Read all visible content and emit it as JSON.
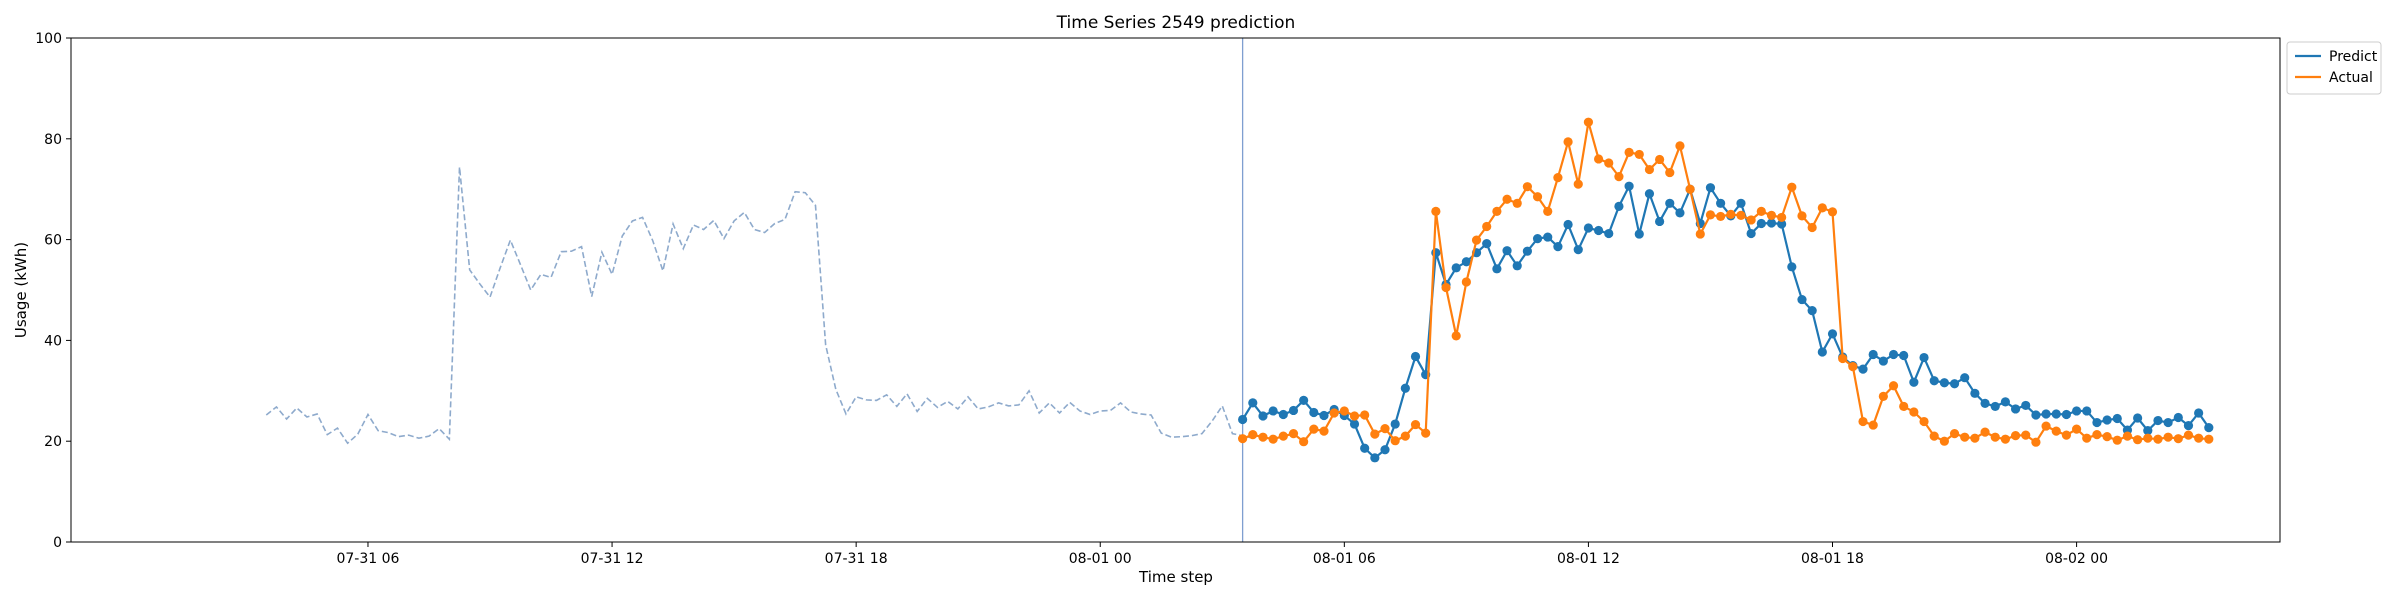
{
  "chart_data": {
    "type": "line",
    "title": "Time Series 2549 prediction",
    "xlabel": "Time step",
    "ylabel": "Usage (kWh)",
    "ylim": [
      0,
      100
    ],
    "yticks": [
      0,
      20,
      40,
      60,
      80,
      100
    ],
    "xlim": [
      "2024-07-30 22:42",
      "2024-08-02 05:00"
    ],
    "xticks": [
      {
        "t": "2024-07-31 06:00",
        "label": "07-31 06"
      },
      {
        "t": "2024-07-31 12:00",
        "label": "07-31 12"
      },
      {
        "t": "2024-07-31 18:00",
        "label": "07-31 18"
      },
      {
        "t": "2024-08-01 00:00",
        "label": "08-01 00"
      },
      {
        "t": "2024-08-01 06:00",
        "label": "08-01 06"
      },
      {
        "t": "2024-08-01 12:00",
        "label": "08-01 12"
      },
      {
        "t": "2024-08-01 18:00",
        "label": "08-01 18"
      },
      {
        "t": "2024-08-02 00:00",
        "label": "08-02 00"
      }
    ],
    "interval_minutes": 15,
    "forecast_start": "2024-08-01 03:30",
    "legend": {
      "location": "upper right, outside plot"
    },
    "grid": false,
    "series": [
      {
        "key": "history",
        "start": "2024-07-31 03:30",
        "color": "#8eaacc",
        "style": "dashed",
        "values": [
          25.2,
          26.8,
          24.4,
          26.6,
          24.8,
          25.4,
          21.3,
          22.6,
          19.6,
          21.4,
          25.3,
          22.1,
          21.7,
          20.9,
          21.2,
          20.6,
          21.0,
          22.5,
          20.4,
          74.4,
          54.0,
          51.2,
          48.6,
          54.4,
          59.9,
          55.0,
          50.0,
          53.1,
          52.5,
          57.6,
          57.7,
          58.6,
          48.7,
          57.5,
          53.1,
          60.7,
          63.7,
          64.4,
          59.8,
          53.8,
          63.1,
          58.2,
          62.9,
          62.0,
          63.8,
          60.2,
          63.7,
          65.4,
          62.0,
          61.4,
          63.2,
          64.0,
          69.5,
          69.3,
          66.8,
          39.1,
          30.3,
          25.4,
          28.8,
          28.2,
          28.1,
          29.2,
          26.9,
          29.4,
          25.9,
          28.5,
          26.7,
          27.9,
          26.4,
          28.8,
          26.4,
          26.8,
          27.6,
          27.0,
          27.2,
          30.0,
          25.6,
          27.6,
          25.6,
          27.7,
          26.0,
          25.3,
          26.0,
          26.1,
          27.6,
          25.8,
          25.4,
          25.2,
          21.6,
          20.8,
          20.9,
          21.1,
          21.5,
          24.0,
          27.0,
          21.5,
          21.1,
          20.6
        ]
      },
      {
        "name": "Predict",
        "key": "predict",
        "start": "2024-08-01 03:30",
        "color": "#1f77b4",
        "style": "solid-markers",
        "values": [
          24.3,
          27.6,
          25.0,
          26.0,
          25.3,
          26.1,
          28.1,
          25.7,
          25.1,
          26.3,
          25.1,
          23.4,
          18.6,
          16.7,
          18.3,
          23.4,
          30.5,
          36.8,
          33.2,
          57.4,
          51.1,
          54.4,
          55.6,
          57.4,
          59.2,
          54.2,
          57.8,
          54.8,
          57.7,
          60.2,
          60.5,
          58.6,
          63.0,
          58.0,
          62.3,
          61.8,
          61.2,
          66.6,
          70.6,
          61.1,
          69.1,
          63.6,
          67.2,
          65.3,
          70.0,
          63.2,
          70.3,
          67.2,
          64.7,
          67.2,
          61.2,
          63.2,
          63.3,
          63.1,
          54.6,
          48.1,
          45.9,
          37.7,
          41.3,
          36.7,
          35.0,
          34.3,
          37.2,
          35.9,
          37.2,
          37.0,
          31.7,
          36.6,
          32.0,
          31.6,
          31.4,
          32.6,
          29.5,
          27.5,
          26.9,
          27.8,
          26.4,
          27.1,
          25.2,
          25.4,
          25.4,
          25.3,
          26.0,
          26.0,
          23.7,
          24.2,
          24.5,
          22.2,
          24.6,
          22.1,
          24.1,
          23.7,
          24.7,
          23.1,
          25.6,
          22.7
        ]
      },
      {
        "name": "Actual",
        "key": "actual",
        "start": "2024-08-01 03:30",
        "color": "#ff7f0e",
        "style": "solid-markers",
        "values": [
          20.5,
          21.3,
          20.8,
          20.4,
          21.0,
          21.5,
          19.9,
          22.4,
          22.0,
          25.6,
          26.0,
          25.0,
          25.2,
          21.4,
          22.5,
          20.1,
          21.0,
          23.3,
          21.6,
          65.6,
          50.5,
          40.9,
          51.6,
          59.9,
          62.6,
          65.6,
          68.0,
          67.2,
          70.5,
          68.5,
          65.6,
          72.3,
          79.4,
          71.0,
          83.3,
          76.0,
          75.2,
          72.5,
          77.3,
          76.9,
          73.9,
          75.9,
          73.3,
          78.6,
          70.0,
          61.1,
          64.9,
          64.6,
          65.0,
          64.8,
          63.9,
          65.6,
          64.8,
          64.4,
          70.4,
          64.7,
          62.4,
          66.3,
          65.5,
          36.4,
          34.8,
          23.9,
          23.2,
          28.9,
          31.0,
          26.9,
          25.8,
          23.9,
          21.0,
          20.0,
          21.5,
          20.8,
          20.6,
          21.8,
          20.8,
          20.4,
          21.1,
          21.2,
          19.8,
          23.0,
          22.0,
          21.2,
          22.4,
          20.6,
          21.3,
          20.9,
          20.2,
          21.0,
          20.3,
          20.6,
          20.4,
          20.8,
          20.5,
          21.2,
          20.6,
          20.4
        ]
      }
    ]
  }
}
